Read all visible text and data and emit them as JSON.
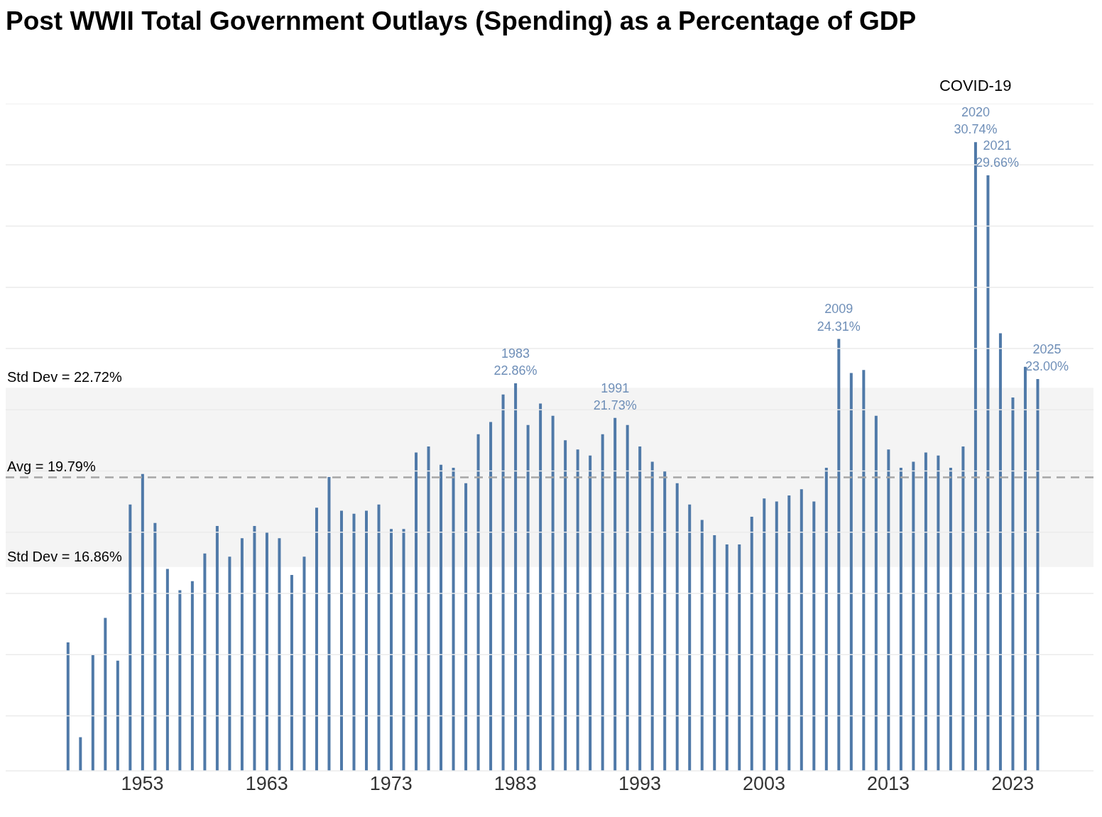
{
  "chart_data": {
    "type": "bar",
    "title": "Post WWII Total Government Outlays (Spending) as a Percentage of GDP",
    "x": [
      1947,
      1948,
      1949,
      1950,
      1951,
      1952,
      1953,
      1954,
      1955,
      1956,
      1957,
      1958,
      1959,
      1960,
      1961,
      1962,
      1963,
      1964,
      1965,
      1966,
      1967,
      1968,
      1969,
      1970,
      1971,
      1972,
      1973,
      1974,
      1975,
      1976,
      1977,
      1978,
      1979,
      1980,
      1981,
      1982,
      1983,
      1984,
      1985,
      1986,
      1987,
      1988,
      1989,
      1990,
      1991,
      1992,
      1993,
      1994,
      1995,
      1996,
      1997,
      1998,
      1999,
      2000,
      2001,
      2002,
      2003,
      2004,
      2005,
      2006,
      2007,
      2008,
      2009,
      2010,
      2011,
      2012,
      2013,
      2014,
      2015,
      2016,
      2017,
      2018,
      2019,
      2020,
      2021,
      2022,
      2023,
      2024,
      2025
    ],
    "values": [
      14.4,
      11.3,
      14.0,
      15.2,
      13.8,
      18.9,
      19.9,
      18.3,
      16.8,
      16.1,
      16.4,
      17.3,
      18.2,
      17.2,
      17.8,
      18.2,
      18.0,
      17.8,
      16.6,
      17.2,
      18.8,
      19.8,
      18.7,
      18.6,
      18.7,
      18.9,
      18.1,
      18.1,
      20.6,
      20.8,
      20.2,
      20.1,
      19.6,
      21.2,
      21.6,
      22.5,
      22.86,
      21.5,
      22.2,
      21.8,
      21.0,
      20.7,
      20.5,
      21.2,
      21.73,
      21.5,
      20.8,
      20.3,
      20.0,
      19.6,
      18.9,
      18.4,
      17.9,
      17.6,
      17.6,
      18.5,
      19.1,
      19.0,
      19.2,
      19.4,
      19.0,
      20.1,
      24.31,
      23.2,
      23.3,
      21.8,
      20.7,
      20.1,
      20.3,
      20.6,
      20.5,
      20.1,
      20.8,
      30.74,
      29.66,
      24.5,
      22.4,
      23.4,
      23.0
    ],
    "value_labels": [
      null,
      null,
      null,
      null,
      null,
      null,
      null,
      null,
      null,
      null,
      null,
      null,
      null,
      null,
      null,
      null,
      null,
      null,
      null,
      null,
      null,
      null,
      null,
      null,
      null,
      null,
      null,
      null,
      null,
      null,
      null,
      null,
      null,
      null,
      null,
      null,
      "1983\n22.86%",
      null,
      null,
      null,
      null,
      null,
      null,
      null,
      "1991\n21.73%",
      null,
      null,
      null,
      null,
      null,
      null,
      null,
      null,
      null,
      null,
      null,
      null,
      null,
      null,
      null,
      null,
      null,
      "2009\n24.31%",
      null,
      null,
      null,
      null,
      null,
      null,
      null,
      null,
      null,
      null,
      "2020\n30.74%",
      "2021\n29.66%",
      null,
      null,
      null,
      "2025\n23.00%"
    ],
    "color": "#4f79a8",
    "xlim": [
      1942,
      2029.5
    ],
    "xticks": [
      1953,
      1963,
      1973,
      1983,
      1993,
      2003,
      2013,
      2023
    ],
    "ylim": [
      10.2,
      32
    ],
    "yticks": [
      {
        "value": 12,
        "label": null
      },
      {
        "value": 14,
        "label": null
      },
      {
        "value": 16,
        "label": null
      },
      {
        "value": 18,
        "label": null
      },
      {
        "value": 20,
        "label": null
      },
      {
        "value": 22,
        "label": null
      },
      {
        "value": 24,
        "label": null
      },
      {
        "value": 26,
        "label": null
      },
      {
        "value": 28,
        "label": null
      },
      {
        "value": 30,
        "label": null
      },
      {
        "value": 32,
        "label": null
      }
    ],
    "grid": "y",
    "tick_labels": "x",
    "ref_lines": [
      {
        "axis": "y",
        "value": 19.79,
        "label": "Avg = 19.79%",
        "color": "#a6a6a6",
        "line_style": "dashed"
      }
    ],
    "bands": [
      {
        "axis": "y",
        "from": 16.86,
        "to": 22.72,
        "color": "#f4f4f4"
      }
    ],
    "annotations": [
      {
        "text": "Std Dev = 22.72%",
        "y": 22.72
      },
      {
        "text": "Std Dev = 16.86%",
        "y": 16.86
      },
      "COVID-19"
    ]
  }
}
